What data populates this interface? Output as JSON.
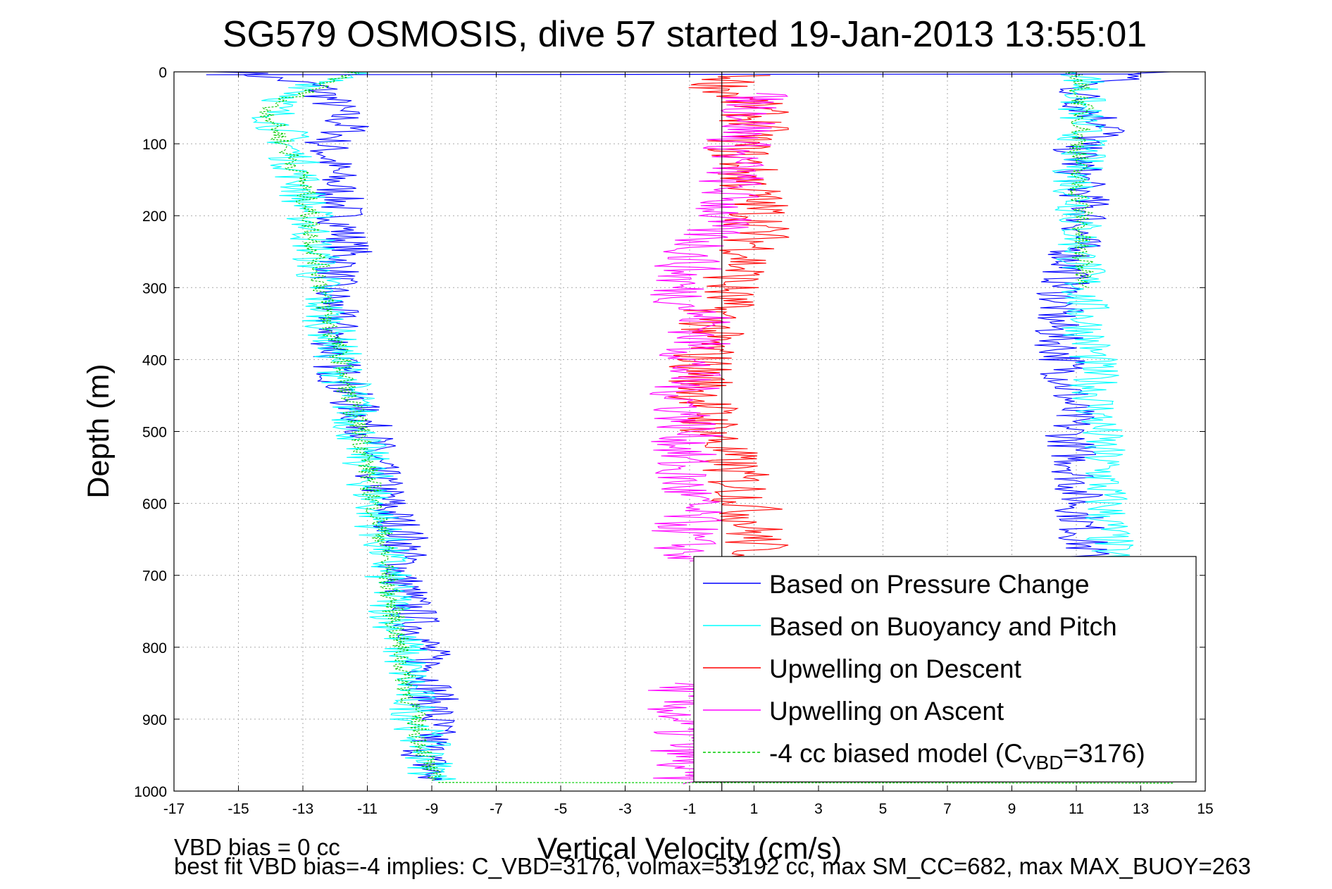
{
  "chart_data": {
    "type": "line",
    "title": "SG579 OSMOSIS, dive 57 started 19-Jan-2013 13:55:01",
    "xlabel": "Vertical Velocity (cm/s)",
    "ylabel": "Depth (m)",
    "xlim": [
      -17,
      15
    ],
    "ylim": [
      0,
      1000
    ],
    "y_reversed": true,
    "grid": true,
    "legend_position": "bottom-right",
    "xticks": [
      -17,
      -15,
      -13,
      -11,
      -9,
      -7,
      -5,
      -3,
      -1,
      1,
      3,
      5,
      7,
      9,
      11,
      13,
      15
    ],
    "yticks": [
      0,
      100,
      200,
      300,
      400,
      500,
      600,
      700,
      800,
      900,
      1000
    ],
    "series": [
      {
        "name": "Based on Pressure Change",
        "color": "#0000ff",
        "style": "solid",
        "segments": [
          {
            "depth": [
              0,
              20,
              50,
              80,
              100,
              150,
              200,
              250,
              300,
              350,
              400,
              450,
              500,
              550,
              600,
              650,
              700,
              750,
              800,
              850,
              900,
              950,
              985
            ],
            "velocity": [
              -15,
              -12.5,
              -12,
              -11.6,
              -12.3,
              -12,
              -11.8,
              -11.6,
              -12.2,
              -12.0,
              -12.0,
              -11.6,
              -10.9,
              -10.8,
              -10.4,
              -9.8,
              -10.0,
              -9.6,
              -9.2,
              -9.0,
              -8.9,
              -9.2,
              -9.0
            ]
          },
          {
            "depth": [
              0,
              20,
              50,
              80,
              100,
              150,
              200,
              250,
              300,
              350,
              400,
              450,
              500,
              550,
              600,
              650,
              700
            ],
            "velocity": [
              13.5,
              11,
              11.3,
              12.2,
              11,
              11.1,
              11.4,
              10.9,
              10.6,
              10.3,
              10.6,
              10.8,
              10.8,
              11,
              11.1,
              11.2,
              11.5
            ]
          }
        ]
      },
      {
        "name": "Based on Buoyancy and Pitch",
        "color": "#00ffff",
        "style": "solid",
        "segments": [
          {
            "depth": [
              0,
              50,
              100,
              150,
              200,
              250,
              300,
              350,
              400,
              450,
              500,
              550,
              600,
              650,
              700,
              750,
              800,
              850,
              900,
              950,
              985
            ],
            "velocity": [
              -11.6,
              -14.0,
              -13.4,
              -13.1,
              -12.8,
              -12.6,
              -12.5,
              -12.2,
              -11.9,
              -11.5,
              -11.3,
              -11.0,
              -10.8,
              -10.5,
              -10.4,
              -10.2,
              -9.9,
              -9.7,
              -9.5,
              -9.1,
              -8.9
            ]
          },
          {
            "depth": [
              0,
              50,
              100,
              150,
              200,
              250,
              300,
              350,
              400,
              450,
              500,
              550,
              600,
              650,
              700
            ],
            "velocity": [
              11.3,
              11.1,
              11.2,
              11.0,
              11.1,
              11.1,
              11.2,
              11.3,
              11.5,
              11.6,
              11.7,
              11.8,
              11.9,
              12.0,
              12.2
            ]
          }
        ]
      },
      {
        "name": "Upwelling on Descent",
        "color": "#ff0000",
        "style": "solid",
        "segments": [
          {
            "depth": [
              5,
              20,
              50,
              80,
              100,
              150,
              200,
              250,
              300,
              350,
              400,
              450,
              500,
              550,
              600,
              650,
              680
            ],
            "velocity": [
              0.5,
              0.0,
              1.0,
              1.0,
              0.5,
              0.8,
              1.2,
              1.0,
              0.2,
              -0.3,
              -0.6,
              -0.6,
              -0.3,
              0.3,
              0.8,
              1.0,
              1.2
            ]
          }
        ]
      },
      {
        "name": "Upwelling on Ascent",
        "color": "#ff00ff",
        "style": "solid",
        "segments": [
          {
            "depth": [
              30,
              60,
              100,
              150,
              200,
              250,
              300,
              350,
              400,
              450,
              500,
              550,
              600,
              650,
              680
            ],
            "velocity": [
              1.0,
              1.0,
              0.5,
              0.3,
              0.0,
              -0.8,
              -1.4,
              -0.5,
              -1.0,
              -1.2,
              -1.0,
              -1.4,
              -1.0,
              -1.2,
              -1.0
            ]
          },
          {
            "depth": [
              850,
              880,
              910,
              940,
              970,
              990
            ],
            "velocity": [
              -1.2,
              -1.4,
              -1.3,
              -1.1,
              -1.3,
              -1.2
            ]
          }
        ]
      },
      {
        "name": "-4 cc biased model",
        "color": "#00cc00",
        "style": "dashed",
        "segments": [
          {
            "depth": [
              0,
              50,
              100,
              150,
              200,
              250,
              300,
              350,
              400,
              450,
              500,
              550,
              600,
              650,
              700,
              750,
              800,
              850,
              900,
              950,
              985
            ],
            "velocity": [
              -11.4,
              -14.1,
              -13.6,
              -13.0,
              -12.8,
              -12.6,
              -12.4,
              -12.2,
              -11.8,
              -11.6,
              -11.2,
              -11.0,
              -10.8,
              -10.5,
              -10.4,
              -10.2,
              -10.0,
              -9.8,
              -9.5,
              -9.2,
              -9.0
            ]
          },
          {
            "depth": [
              0,
              50,
              100,
              150,
              200,
              250,
              300
            ],
            "velocity": [
              11.0,
              11.2,
              11.1,
              11.0,
              11.2,
              11.1,
              11.4
            ]
          }
        ]
      }
    ]
  },
  "legend": [
    {
      "label": "Based on Pressure Change",
      "color": "#0000ff",
      "dashed": false
    },
    {
      "label": "Based on Buoyancy and Pitch",
      "color": "#00ffff",
      "dashed": false
    },
    {
      "label": "Upwelling on Descent",
      "color": "#ff0000",
      "dashed": false
    },
    {
      "label": "Upwelling on Ascent",
      "color": "#ff00ff",
      "dashed": false
    },
    {
      "label": "-4 cc biased model (C",
      "sub": "VBD",
      "suffix": "=3176)",
      "color": "#00cc00",
      "dashed": true
    }
  ],
  "footer": {
    "line1": "VBD bias = 0 cc",
    "line2": "best fit VBD bias=-4 implies: C_VBD=3176, volmax=53192 cc, max SM_CC=682, max MAX_BUOY=263"
  }
}
